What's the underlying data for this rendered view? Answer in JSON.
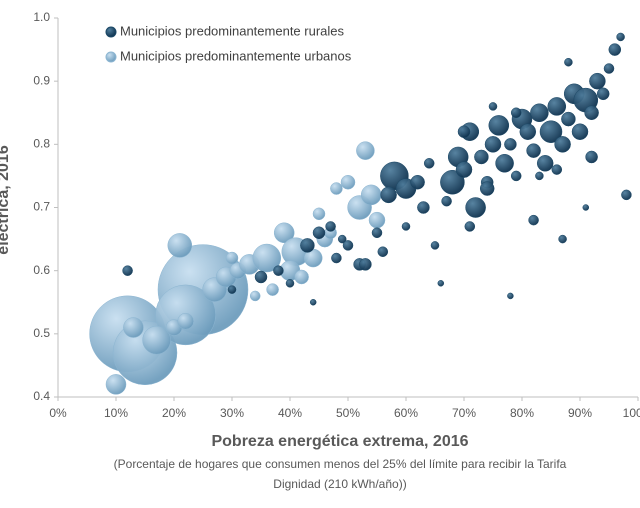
{
  "chart_data": {
    "type": "bubble",
    "x_label": "Pobreza energética extrema, 2016",
    "x_sublabel_lines": [
      "(Porcentaje de hogares que consumen menos del 25% del límite para recibir la Tarifa",
      "Dignidad (210 kWh/año))"
    ],
    "y_label": "eléctrica, 2016",
    "xlim": [
      0,
      100
    ],
    "xticks": [
      {
        "value": 0,
        "label": "0%"
      },
      {
        "value": 10,
        "label": "10%"
      },
      {
        "value": 20,
        "label": "20%"
      },
      {
        "value": 30,
        "label": "30%"
      },
      {
        "value": 40,
        "label": "40%"
      },
      {
        "value": 50,
        "label": "50%"
      },
      {
        "value": 60,
        "label": "60%"
      },
      {
        "value": 70,
        "label": "70%"
      },
      {
        "value": 80,
        "label": "80%"
      },
      {
        "value": 90,
        "label": "90%"
      },
      {
        "value": 100,
        "label": "100%"
      }
    ],
    "ylim": [
      0.4,
      1
    ],
    "yticks": [
      0.4,
      0.5,
      0.6,
      0.7,
      0.8,
      0.9,
      {
        "value": 1,
        "label": "1.0"
      }
    ],
    "grid": false,
    "legend": "top-left",
    "series": [
      {
        "name": "Municipios predominantemente rurales",
        "color": "#1b4866",
        "x": [
          12,
          30,
          35,
          38,
          40,
          43,
          45,
          47,
          49,
          50,
          52,
          56,
          58,
          60,
          57,
          62,
          63,
          65,
          67,
          68,
          69,
          70,
          71,
          72,
          73,
          74,
          75,
          76,
          77,
          78,
          79,
          80,
          81,
          82,
          83,
          84,
          85,
          86,
          87,
          88,
          89,
          90,
          91,
          92,
          93,
          94,
          95,
          96,
          97,
          98,
          91,
          87,
          82,
          78,
          66,
          71,
          64,
          60,
          55,
          53,
          48,
          44,
          88,
          92,
          86,
          75,
          79,
          83,
          74,
          70
        ],
        "values": [
          0.6,
          0.57,
          0.59,
          0.6,
          0.58,
          0.64,
          0.66,
          0.67,
          0.65,
          0.64,
          0.61,
          0.63,
          0.75,
          0.73,
          0.72,
          0.74,
          0.7,
          0.64,
          0.71,
          0.74,
          0.78,
          0.76,
          0.82,
          0.7,
          0.78,
          0.74,
          0.8,
          0.83,
          0.77,
          0.8,
          0.75,
          0.84,
          0.82,
          0.79,
          0.85,
          0.77,
          0.82,
          0.86,
          0.8,
          0.84,
          0.88,
          0.82,
          0.87,
          0.85,
          0.9,
          0.88,
          0.92,
          0.95,
          0.97,
          0.72,
          0.7,
          0.65,
          0.68,
          0.56,
          0.58,
          0.67,
          0.77,
          0.67,
          0.66,
          0.61,
          0.62,
          0.55,
          0.93,
          0.78,
          0.76,
          0.86,
          0.85,
          0.75,
          0.73,
          0.82
        ],
        "sizes": [
          5,
          4,
          6,
          5,
          4,
          7,
          6,
          5,
          4,
          5,
          6,
          5,
          14,
          10,
          8,
          7,
          6,
          4,
          5,
          12,
          10,
          8,
          9,
          10,
          7,
          6,
          8,
          10,
          9,
          6,
          5,
          10,
          8,
          7,
          9,
          8,
          11,
          9,
          8,
          7,
          10,
          8,
          12,
          7,
          8,
          6,
          5,
          6,
          4,
          5,
          3,
          4,
          5,
          3,
          3,
          5,
          5,
          4,
          5,
          6,
          5,
          3,
          4,
          6,
          5,
          4,
          5,
          4,
          7,
          6
        ]
      },
      {
        "name": "Municipios predominantemente urbanos",
        "color": "#8db6d2",
        "x": [
          12,
          15,
          25,
          22,
          10,
          13,
          17,
          20,
          22,
          21,
          27,
          29,
          31,
          33,
          36,
          39,
          41,
          40,
          44,
          46,
          48,
          50,
          52,
          54,
          55,
          53,
          45,
          37,
          34,
          42,
          47,
          30
        ],
        "values": [
          0.5,
          0.47,
          0.57,
          0.53,
          0.42,
          0.51,
          0.49,
          0.51,
          0.52,
          0.64,
          0.57,
          0.59,
          0.6,
          0.61,
          0.62,
          0.66,
          0.63,
          0.6,
          0.62,
          0.65,
          0.73,
          0.74,
          0.7,
          0.72,
          0.68,
          0.79,
          0.69,
          0.57,
          0.56,
          0.59,
          0.66,
          0.62
        ],
        "sizes": [
          38,
          32,
          45,
          30,
          10,
          10,
          14,
          8,
          8,
          12,
          12,
          10,
          8,
          10,
          14,
          10,
          14,
          10,
          9,
          8,
          6,
          7,
          12,
          10,
          8,
          9,
          6,
          6,
          5,
          7,
          6,
          6
        ]
      }
    ]
  }
}
